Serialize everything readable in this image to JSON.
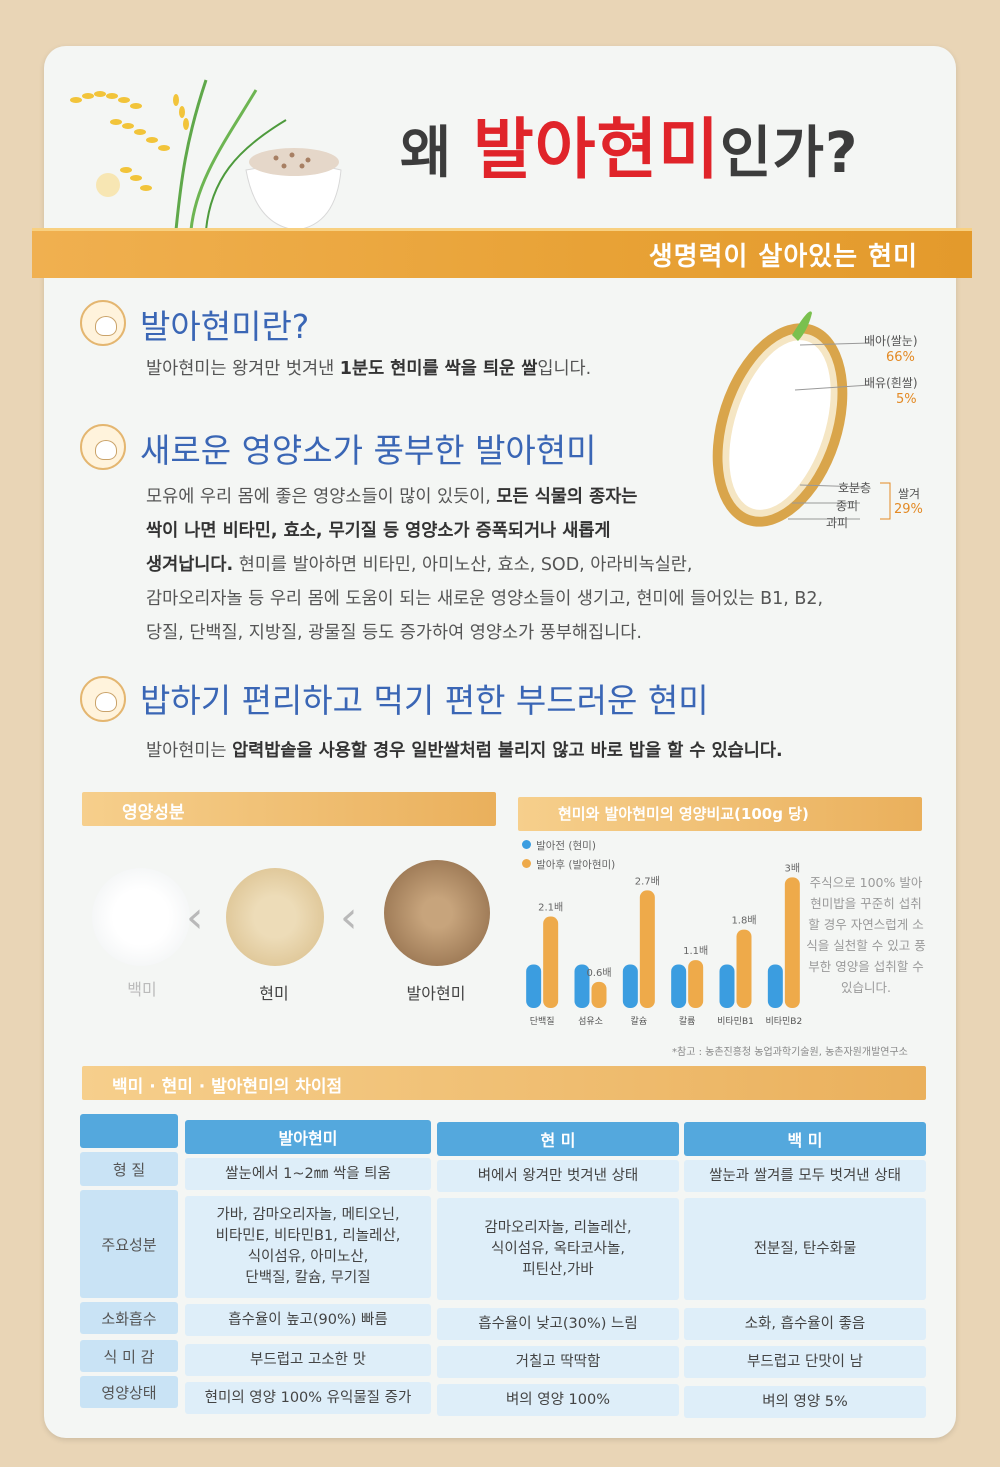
{
  "header": {
    "title_pre": "왜 ",
    "title_highlight": "발아현미",
    "title_post": "인가?",
    "banner": "생명력이 살아있는 현미"
  },
  "section1": {
    "heading": "발아현미란?",
    "text_a": "발아현미는 왕겨만 벗겨낸 ",
    "text_bold": "1분도 현미를 싹을  틔운 쌀",
    "text_b": "입니다."
  },
  "section2": {
    "heading": "새로운 영양소가 풍부한 발아현미",
    "line1_a": "모유에 우리 몸에 좋은 영양소들이 많이 있듯이, ",
    "line1_bold": "모든 식물의 종자는",
    "line2_bold": "싹이 나면 비타민, 효소, 무기질 등 영양소가 증폭되거나 새롭게",
    "line3_bold": "생겨납니다.",
    "line3_rest": " 현미를 발아하면 비타민, 아미노산, 효소, SOD, 아라비녹실란,",
    "line4": "감마오리자놀 등 우리 몸에 도움이 되는 새로운 영양소들이 생기고, 현미에 들어있는 B1, B2,",
    "line5": "당질, 단백질, 지방질, 광물질 등도 증가하여 영양소가 풍부해집니다."
  },
  "section3": {
    "heading": "밥하기 편리하고 먹기 편한 부드러운 현미",
    "text_a": "발아현미는 ",
    "text_bold": "압력밥솥을 사용할 경우 일반쌀처럼 불리지 않고 바로 밥을 할 수 있습니다."
  },
  "grain_diagram": {
    "embryo_label": "배아(쌀눈)",
    "embryo_pct": "66%",
    "endosperm_label": "배유(흰쌀)",
    "endosperm_pct": "5%",
    "layer1": "호분층",
    "layer2": "종피",
    "layer3": "과피",
    "bran_label": "쌀겨",
    "bran_pct": "29%"
  },
  "nutrition": {
    "title": "영양성분",
    "items": [
      "백미",
      "현미",
      "발아현미"
    ]
  },
  "chart_data": {
    "type": "bar",
    "title": "현미와 발아현미의 영양비교(100g 당)",
    "categories": [
      "단백질",
      "섬유소",
      "칼슘",
      "칼륨",
      "비타민B1",
      "비타민B2"
    ],
    "series": [
      {
        "name": "발아전 (현미)",
        "values": [
          1,
          1,
          1,
          1,
          1,
          1
        ],
        "color": "#3b9de0"
      },
      {
        "name": "발아후 (발아현미)",
        "values": [
          2.1,
          0.6,
          2.7,
          1.1,
          1.8,
          3
        ],
        "color": "#eeaa4a"
      }
    ],
    "data_labels": [
      "2.1배",
      "0.6배",
      "2.7배",
      "1.1배",
      "1.8배",
      "3배"
    ],
    "ylim": [
      0,
      3.1
    ],
    "note": "주식으로 100% 발아현미밥을 꾸준히 섭취할 경우 자연스럽게 소식을 실천할 수 있고 풍부한 영양을 섭취할 수 있습니다.",
    "source": "*참고 : 농촌진흥청 농업과학기술원, 농촌자원개발연구소"
  },
  "comparison": {
    "title": "백미 · 현미 · 발아현미의 차이점",
    "columns": [
      "발아현미",
      "현 미",
      "백 미"
    ],
    "rows": [
      {
        "label": "형 질",
        "cells": [
          "쌀눈에서 1~2㎜ 싹을 틔움",
          "벼에서 왕겨만 벗겨낸 상태",
          "쌀눈과 쌀겨를 모두 벗겨낸 상태"
        ]
      },
      {
        "label": "주요성분",
        "cells": [
          "가바, 감마오리자놀, 메티오닌,\n비타민E, 비타민B1, 리놀레산,\n식이섬유, 아미노산,\n단백질, 칼슘, 무기질",
          "감마오리자놀, 리놀레산,\n식이섬유, 옥타코사놀,\n피틴산,가바",
          "전분질, 탄수화물"
        ]
      },
      {
        "label": "소화흡수",
        "cells": [
          "흡수율이 높고(90%) 빠름",
          "흡수율이 낮고(30%) 느림",
          "소화, 흡수율이 좋음"
        ]
      },
      {
        "label": "식 미 감",
        "cells": [
          "부드럽고 고소한 맛",
          "거칠고 딱딱함",
          "부드럽고 단맛이 남"
        ]
      },
      {
        "label": "영양상태",
        "cells": [
          "현미의 영양 100% 유익물질 증가",
          "벼의 영양 100%",
          "벼의 영양 5%"
        ]
      }
    ]
  }
}
